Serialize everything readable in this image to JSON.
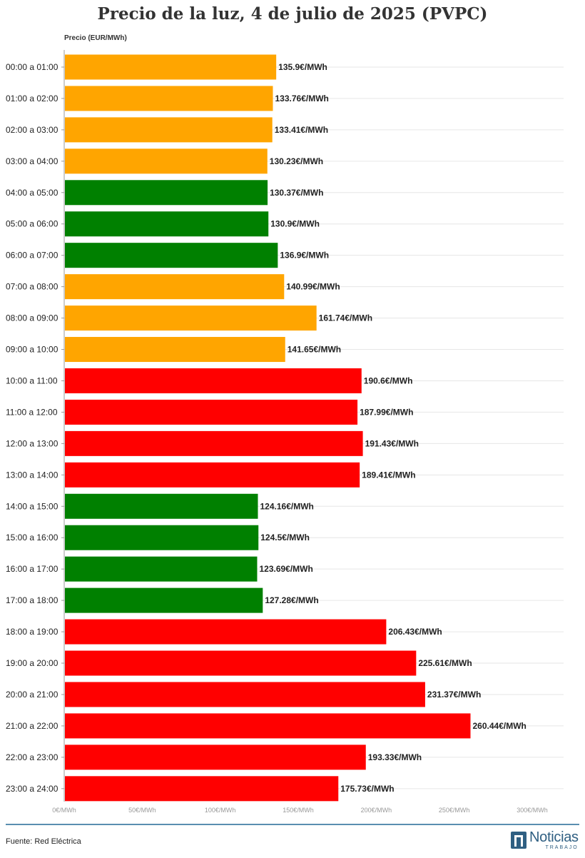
{
  "chart_data": {
    "type": "bar",
    "orientation": "horizontal",
    "title": "Precio de la luz, 4 de julio de 2025 (PVPC)",
    "xlabel": "Precio (EUR/MWh)",
    "value_suffix": "€/MWh",
    "xlim": [
      0,
      300
    ],
    "ticks": [
      "0€/MWh",
      "50€/MWh",
      "100€/MWh",
      "150€/MWh",
      "200€/MWh",
      "250€/MWh",
      "300€/MWh"
    ],
    "tick_values": [
      0,
      50,
      100,
      150,
      200,
      250,
      300
    ],
    "grid": true,
    "colors": {
      "high": "#ff0000",
      "medium": "#ffa500",
      "low": "#008000"
    },
    "bars": [
      {
        "category": "00:00 a 01:00",
        "value": 135.9,
        "label": "135.9€/MWh",
        "level": "medium"
      },
      {
        "category": "01:00 a 02:00",
        "value": 133.76,
        "label": "133.76€/MWh",
        "level": "medium"
      },
      {
        "category": "02:00 a 03:00",
        "value": 133.41,
        "label": "133.41€/MWh",
        "level": "medium"
      },
      {
        "category": "03:00 a 04:00",
        "value": 130.23,
        "label": "130.23€/MWh",
        "level": "medium"
      },
      {
        "category": "04:00 a 05:00",
        "value": 130.37,
        "label": "130.37€/MWh",
        "level": "low"
      },
      {
        "category": "05:00 a 06:00",
        "value": 130.9,
        "label": "130.9€/MWh",
        "level": "low"
      },
      {
        "category": "06:00 a 07:00",
        "value": 136.9,
        "label": "136.9€/MWh",
        "level": "low"
      },
      {
        "category": "07:00 a 08:00",
        "value": 140.99,
        "label": "140.99€/MWh",
        "level": "medium"
      },
      {
        "category": "08:00 a 09:00",
        "value": 161.74,
        "label": "161.74€/MWh",
        "level": "medium"
      },
      {
        "category": "09:00 a 10:00",
        "value": 141.65,
        "label": "141.65€/MWh",
        "level": "medium"
      },
      {
        "category": "10:00 a 11:00",
        "value": 190.6,
        "label": "190.6€/MWh",
        "level": "high"
      },
      {
        "category": "11:00 a 12:00",
        "value": 187.99,
        "label": "187.99€/MWh",
        "level": "high"
      },
      {
        "category": "12:00 a 13:00",
        "value": 191.43,
        "label": "191.43€/MWh",
        "level": "high"
      },
      {
        "category": "13:00 a 14:00",
        "value": 189.41,
        "label": "189.41€/MWh",
        "level": "high"
      },
      {
        "category": "14:00 a 15:00",
        "value": 124.16,
        "label": "124.16€/MWh",
        "level": "low"
      },
      {
        "category": "15:00 a 16:00",
        "value": 124.5,
        "label": "124.5€/MWh",
        "level": "low"
      },
      {
        "category": "16:00 a 17:00",
        "value": 123.69,
        "label": "123.69€/MWh",
        "level": "low"
      },
      {
        "category": "17:00 a 18:00",
        "value": 127.28,
        "label": "127.28€/MWh",
        "level": "low"
      },
      {
        "category": "18:00 a 19:00",
        "value": 206.43,
        "label": "206.43€/MWh",
        "level": "high"
      },
      {
        "category": "19:00 a 20:00",
        "value": 225.61,
        "label": "225.61€/MWh",
        "level": "high"
      },
      {
        "category": "20:00 a 21:00",
        "value": 231.37,
        "label": "231.37€/MWh",
        "level": "high"
      },
      {
        "category": "21:00 a 22:00",
        "value": 260.44,
        "label": "260.44€/MWh",
        "level": "high"
      },
      {
        "category": "22:00 a 23:00",
        "value": 193.33,
        "label": "193.33€/MWh",
        "level": "high"
      },
      {
        "category": "23:00 a 24:00",
        "value": 175.73,
        "label": "175.73€/MWh",
        "level": "high"
      }
    ]
  },
  "footer": {
    "source": "Fuente: Red Eléctrica",
    "logo_main": "Noticias",
    "logo_sub": "TRABAJO"
  }
}
